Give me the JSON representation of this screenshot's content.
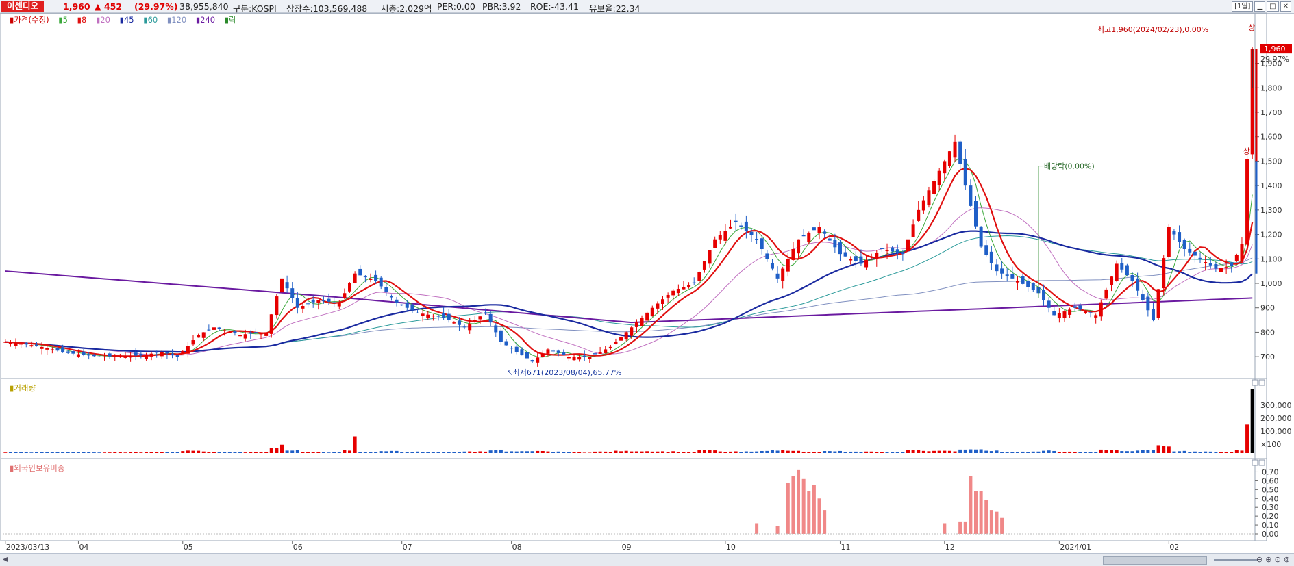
{
  "header": {
    "stock_name": "이센디오",
    "price": "1,960",
    "change": "▲ 452",
    "change_pct": "(29.97%)",
    "volume": "38,955,840",
    "market": "구분:KOSPI",
    "shares": "상장수:103,569,488",
    "mcap": "시총:2,029억",
    "per": "PER:0.00",
    "pbr": "PBR:3.92",
    "roe": "ROE:-43.41",
    "float": "유보율:22.34",
    "period_button": "[1일]"
  },
  "legend": {
    "price_label": "가격(수정)",
    "ma": [
      "5",
      "8",
      "20",
      "45",
      "60",
      "120",
      "240"
    ],
    "drop_label": "락"
  },
  "colors": {
    "up": "#e60000",
    "down": "#1f5fc7",
    "ma5": "#3aa83a",
    "ma8": "#e01010",
    "ma20": "#c070c0",
    "ma45": "#1a2aa0",
    "ma60": "#2a9a9a",
    "ma120": "#8090c0",
    "ma240": "#6a1aa0"
  },
  "annotations": {
    "high": "최고1,960(2024/02/23),0.00%",
    "low": "최저671(2023/08/04),65.77%",
    "dividend": "배당락(0.00%)",
    "limit_up": "상",
    "current_price_badge": "1,960",
    "current_pct": "29.97%"
  },
  "panels": {
    "volume_label": "거래량",
    "foreign_label": "외국인보유비중"
  },
  "chart_data": {
    "type": "candlestick",
    "price_axis": {
      "ticks": [
        700,
        800,
        900,
        1000,
        1100,
        1200,
        1300,
        1400,
        1500,
        1600,
        1700,
        1800,
        1900
      ],
      "range": [
        650,
        2050
      ]
    },
    "volume_axis": {
      "ticks": [
        "300,000",
        "200,000",
        "100,000",
        "×100"
      ],
      "range": [
        0,
        4000
      ]
    },
    "foreign_axis": {
      "ticks": [
        "0.70",
        "0.60",
        "0.50",
        "0.40",
        "0.30",
        "0.20",
        "0.10",
        "0.00"
      ],
      "range": [
        0,
        0.75
      ]
    },
    "x_labels": [
      "2023/03/13",
      "04",
      "05",
      "06",
      "07",
      "08",
      "09",
      "10",
      "11",
      "12",
      "2024/01",
      "02"
    ],
    "x_label_days": [
      0,
      14,
      34,
      55,
      76,
      97,
      118,
      138,
      160,
      180,
      202,
      223
    ],
    "total_days": 240,
    "price_path": [
      [
        0,
        760
      ],
      [
        6,
        745
      ],
      [
        12,
        715
      ],
      [
        18,
        700
      ],
      [
        26,
        705
      ],
      [
        30,
        720
      ],
      [
        33,
        700
      ],
      [
        37,
        790
      ],
      [
        40,
        820
      ],
      [
        45,
        790
      ],
      [
        50,
        800
      ],
      [
        53,
        1020
      ],
      [
        56,
        900
      ],
      [
        60,
        930
      ],
      [
        64,
        920
      ],
      [
        67,
        1040
      ],
      [
        71,
        1010
      ],
      [
        75,
        920
      ],
      [
        79,
        880
      ],
      [
        84,
        860
      ],
      [
        88,
        820
      ],
      [
        92,
        880
      ],
      [
        95,
        760
      ],
      [
        98,
        720
      ],
      [
        101,
        680
      ],
      [
        104,
        730
      ],
      [
        108,
        700
      ],
      [
        112,
        700
      ],
      [
        116,
        740
      ],
      [
        120,
        820
      ],
      [
        124,
        900
      ],
      [
        128,
        970
      ],
      [
        132,
        1000
      ],
      [
        136,
        1180
      ],
      [
        140,
        1250
      ],
      [
        144,
        1180
      ],
      [
        148,
        1020
      ],
      [
        152,
        1180
      ],
      [
        156,
        1230
      ],
      [
        160,
        1120
      ],
      [
        164,
        1080
      ],
      [
        168,
        1140
      ],
      [
        172,
        1120
      ],
      [
        175,
        1300
      ],
      [
        178,
        1420
      ],
      [
        182,
        1580
      ],
      [
        184,
        1400
      ],
      [
        187,
        1150
      ],
      [
        190,
        1050
      ],
      [
        194,
        1010
      ],
      [
        198,
        960
      ],
      [
        201,
        870
      ],
      [
        205,
        900
      ],
      [
        209,
        870
      ],
      [
        213,
        1080
      ],
      [
        216,
        1010
      ],
      [
        220,
        850
      ],
      [
        223,
        1230
      ],
      [
        226,
        1140
      ],
      [
        229,
        1100
      ],
      [
        232,
        1060
      ],
      [
        235,
        1070
      ],
      [
        237,
        1160
      ],
      [
        238,
        1508
      ],
      [
        239,
        1960
      ]
    ],
    "ma240": [
      [
        0,
        1050
      ],
      [
        60,
        950
      ],
      [
        120,
        840
      ],
      [
        180,
        890
      ],
      [
        239,
        940
      ]
    ],
    "foreign_ratio": [
      [
        144,
        0.12
      ],
      [
        148,
        0.09
      ],
      [
        150,
        0.58
      ],
      [
        151,
        0.65
      ],
      [
        152,
        0.72
      ],
      [
        153,
        0.62
      ],
      [
        154,
        0.48
      ],
      [
        155,
        0.55
      ],
      [
        156,
        0.4
      ],
      [
        157,
        0.27
      ],
      [
        180,
        0.12
      ],
      [
        183,
        0.14
      ],
      [
        184,
        0.14
      ],
      [
        185,
        0.65
      ],
      [
        186,
        0.48
      ],
      [
        187,
        0.48
      ],
      [
        188,
        0.38
      ],
      [
        189,
        0.27
      ],
      [
        190,
        0.25
      ],
      [
        191,
        0.18
      ]
    ]
  }
}
